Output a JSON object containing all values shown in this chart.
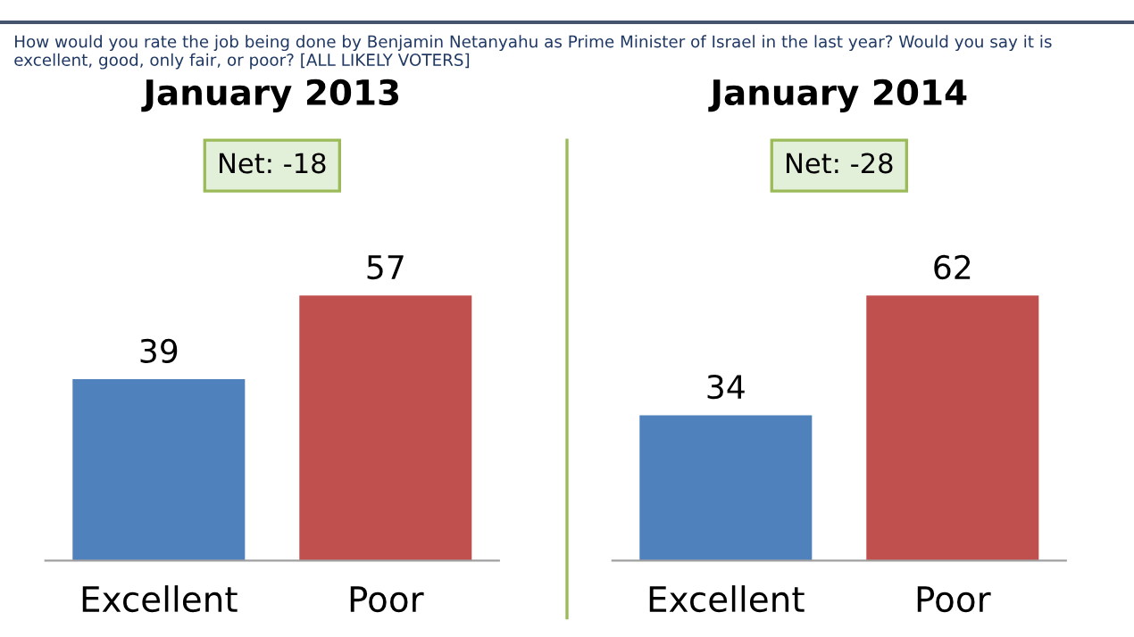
{
  "chart_data": [
    {
      "type": "bar",
      "title": "January 2013",
      "categories": [
        "Excellent",
        "Poor"
      ],
      "values": [
        39,
        57
      ],
      "colors": [
        "#4f81bd",
        "#c0504d"
      ],
      "data_labels": true,
      "grid": false,
      "legend": false,
      "tick_labels": "x",
      "annotations": [
        "How would you rate the job being done by Benjamin Netanyahu as Prime Minister of Israel in the last year? Would you say it is excellent, good, only fair, or poor? [ALL LIKELY VOTERS]",
        "Net: -18"
      ]
    },
    {
      "type": "bar",
      "title": "January 2014",
      "categories": [
        "Excellent",
        "Poor"
      ],
      "values": [
        34,
        62
      ],
      "colors": [
        "#4f81bd",
        "#c0504d"
      ],
      "data_labels": true,
      "grid": false,
      "legend": false,
      "tick_labels": "x",
      "annotations": [
        "Net: -28"
      ]
    }
  ]
}
